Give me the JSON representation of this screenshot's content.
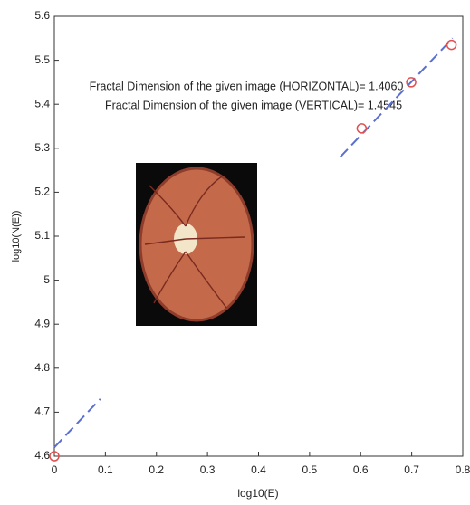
{
  "chart_data": {
    "type": "scatter",
    "xlabel": "log10(E)",
    "ylabel": "log10(N(E))",
    "annotations": [
      "Fractal Dimension of the given image (HORIZONTAL)= 1.4060",
      "Fractal Dimension of the given image (VERTICAL)= 1.4545"
    ],
    "points": {
      "x": [
        0,
        0.602,
        0.699,
        0.778
      ],
      "y": [
        4.6,
        5.345,
        5.45,
        5.535
      ],
      "color": "#e05050"
    },
    "fit_line": {
      "x": [
        0,
        0.09,
        null,
        0.56,
        0.78
      ],
      "y": [
        4.62,
        4.73,
        null,
        5.28,
        5.55
      ],
      "color": "#5a6fd0"
    },
    "xlim": [
      0,
      0.8
    ],
    "xticks": [
      0,
      0.1,
      0.2,
      0.3,
      0.4,
      0.5,
      0.6,
      0.7,
      0.8
    ],
    "ylim": [
      4.6,
      5.6
    ],
    "yticks": [
      4.6,
      4.7,
      4.8,
      4.9,
      5,
      5.1,
      5.2,
      5.3,
      5.4,
      5.5,
      5.6
    ]
  }
}
